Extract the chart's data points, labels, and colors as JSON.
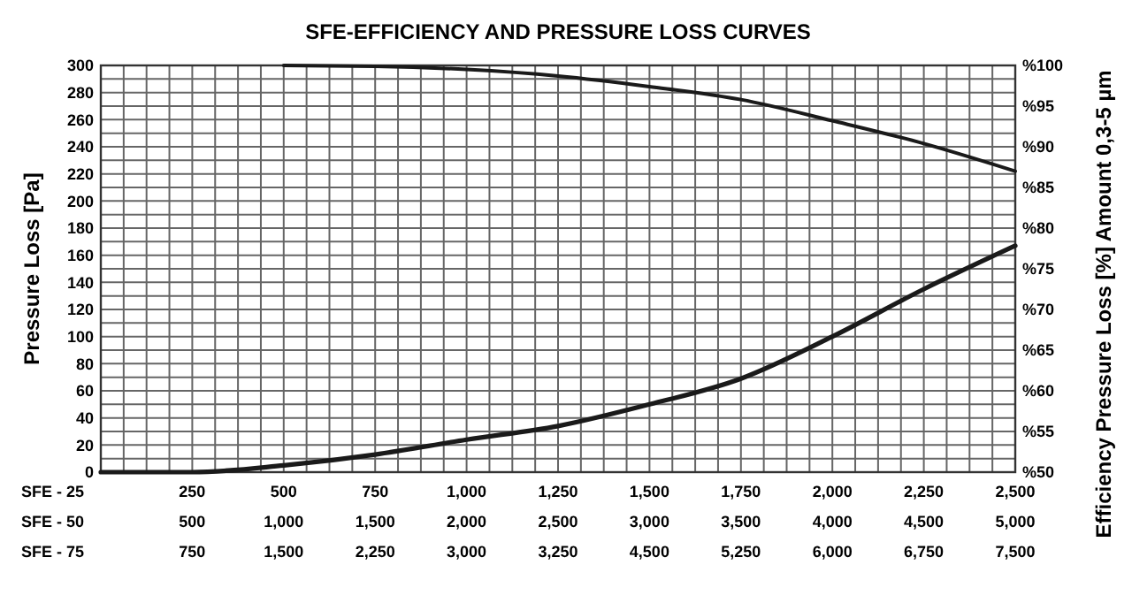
{
  "chart_data": {
    "type": "line",
    "title": "SFE-EFFICIENCY AND PRESSURE LOSS CURVES",
    "xlabel": "SFE - 25",
    "x2label": "SFE - 50",
    "annotations": [
      "SFE - 75",
      "750",
      "1,500",
      "2,250",
      "3,000",
      "3,250",
      "4,500",
      "5,250",
      "6,000",
      "6,750",
      "7,500"
    ],
    "x2lim": [
      0,
      5000
    ],
    "x2ticks": [
      500,
      {
        "value": 1000,
        "label": "1,000"
      },
      {
        "value": 1500,
        "label": "1,500"
      },
      {
        "value": 2000,
        "label": "2,000"
      },
      {
        "value": 2500,
        "label": "2,500"
      },
      {
        "value": 3000,
        "label": "3,000"
      },
      {
        "value": 3500,
        "label": "3,500"
      },
      {
        "value": 4000,
        "label": "4,000"
      },
      {
        "value": 4500,
        "label": "4,500"
      },
      {
        "value": 5000,
        "label": "5,000"
      }
    ],
    "ylabel": "Pressure Loss [Pa]",
    "y2label": "Efficiency Pressure Loss [%] Amount 0,3-5 µm",
    "xlim": [
      0,
      2500
    ],
    "xticks": [
      {
        "value": 62.5,
        "label": null
      },
      {
        "value": 125,
        "label": null
      },
      {
        "value": 187.5,
        "label": null
      },
      250,
      {
        "value": 312.5,
        "label": null
      },
      {
        "value": 375,
        "label": null
      },
      {
        "value": 437.5,
        "label": null
      },
      500,
      {
        "value": 562.5,
        "label": null
      },
      {
        "value": 625,
        "label": null
      },
      {
        "value": 687.5,
        "label": null
      },
      750,
      {
        "value": 812.5,
        "label": null
      },
      {
        "value": 875,
        "label": null
      },
      {
        "value": 937.5,
        "label": null
      },
      {
        "value": 1000,
        "label": "1,000"
      },
      {
        "value": 1062.5,
        "label": null
      },
      {
        "value": 1125,
        "label": null
      },
      {
        "value": 1187.5,
        "label": null
      },
      {
        "value": 1250,
        "label": "1,250"
      },
      {
        "value": 1312.5,
        "label": null
      },
      {
        "value": 1375,
        "label": null
      },
      {
        "value": 1437.5,
        "label": null
      },
      {
        "value": 1500,
        "label": "1,500"
      },
      {
        "value": 1562.5,
        "label": null
      },
      {
        "value": 1625,
        "label": null
      },
      {
        "value": 1687.5,
        "label": null
      },
      {
        "value": 1750,
        "label": "1,750"
      },
      {
        "value": 1812.5,
        "label": null
      },
      {
        "value": 1875,
        "label": null
      },
      {
        "value": 1937.5,
        "label": null
      },
      {
        "value": 2000,
        "label": "2,000"
      },
      {
        "value": 2062.5,
        "label": null
      },
      {
        "value": 2125,
        "label": null
      },
      {
        "value": 2187.5,
        "label": null
      },
      {
        "value": 2250,
        "label": "2,250"
      },
      {
        "value": 2312.5,
        "label": null
      },
      {
        "value": 2375,
        "label": null
      },
      {
        "value": 2437.5,
        "label": null
      },
      {
        "value": 2500,
        "label": "2,500"
      }
    ],
    "ylim": [
      0,
      300
    ],
    "yticks": [
      0,
      {
        "value": 10,
        "label": null
      },
      20,
      {
        "value": 30,
        "label": null
      },
      40,
      {
        "value": 50,
        "label": null
      },
      60,
      {
        "value": 70,
        "label": null
      },
      80,
      {
        "value": 90,
        "label": null
      },
      100,
      {
        "value": 110,
        "label": null
      },
      120,
      {
        "value": 130,
        "label": null
      },
      140,
      {
        "value": 150,
        "label": null
      },
      160,
      {
        "value": 170,
        "label": null
      },
      180,
      {
        "value": 190,
        "label": null
      },
      200,
      {
        "value": 210,
        "label": null
      },
      220,
      {
        "value": 230,
        "label": null
      },
      240,
      {
        "value": 250,
        "label": null
      },
      260,
      {
        "value": 270,
        "label": null
      },
      280,
      {
        "value": 290,
        "label": null
      },
      300
    ],
    "y2lim": [
      50,
      100
    ],
    "y2ticks": [
      {
        "value": 50,
        "label": "%50"
      },
      {
        "value": 55,
        "label": "%55"
      },
      {
        "value": 60,
        "label": "%60"
      },
      {
        "value": 65,
        "label": "%65"
      },
      {
        "value": 70,
        "label": "%70"
      },
      {
        "value": 75,
        "label": "%75"
      },
      {
        "value": 80,
        "label": "%80"
      },
      {
        "value": 85,
        "label": "%85"
      },
      {
        "value": 90,
        "label": "%90"
      },
      {
        "value": 95,
        "label": "%95"
      },
      {
        "value": 100,
        "label": "%100"
      }
    ],
    "grid": true,
    "marker": "none",
    "line_style": "solid",
    "series": [
      {
        "color": "#1a1a1a",
        "x": [
          0,
          250,
          500,
          750,
          1000,
          1250,
          1500,
          1750,
          2000,
          2250,
          2500
        ],
        "values": [
          0,
          0,
          5,
          13,
          24,
          34,
          50,
          69,
          100,
          135,
          167
        ]
      },
      {
        "color": "#1a1a1a",
        "axis": "y2",
        "x": [
          500,
          750,
          1000,
          1250,
          1500,
          1750,
          2000,
          2250,
          2500
        ],
        "values": [
          100,
          99.9,
          99.5,
          98.7,
          97.4,
          95.8,
          93.2,
          90.4,
          87.0
        ]
      }
    ]
  }
}
